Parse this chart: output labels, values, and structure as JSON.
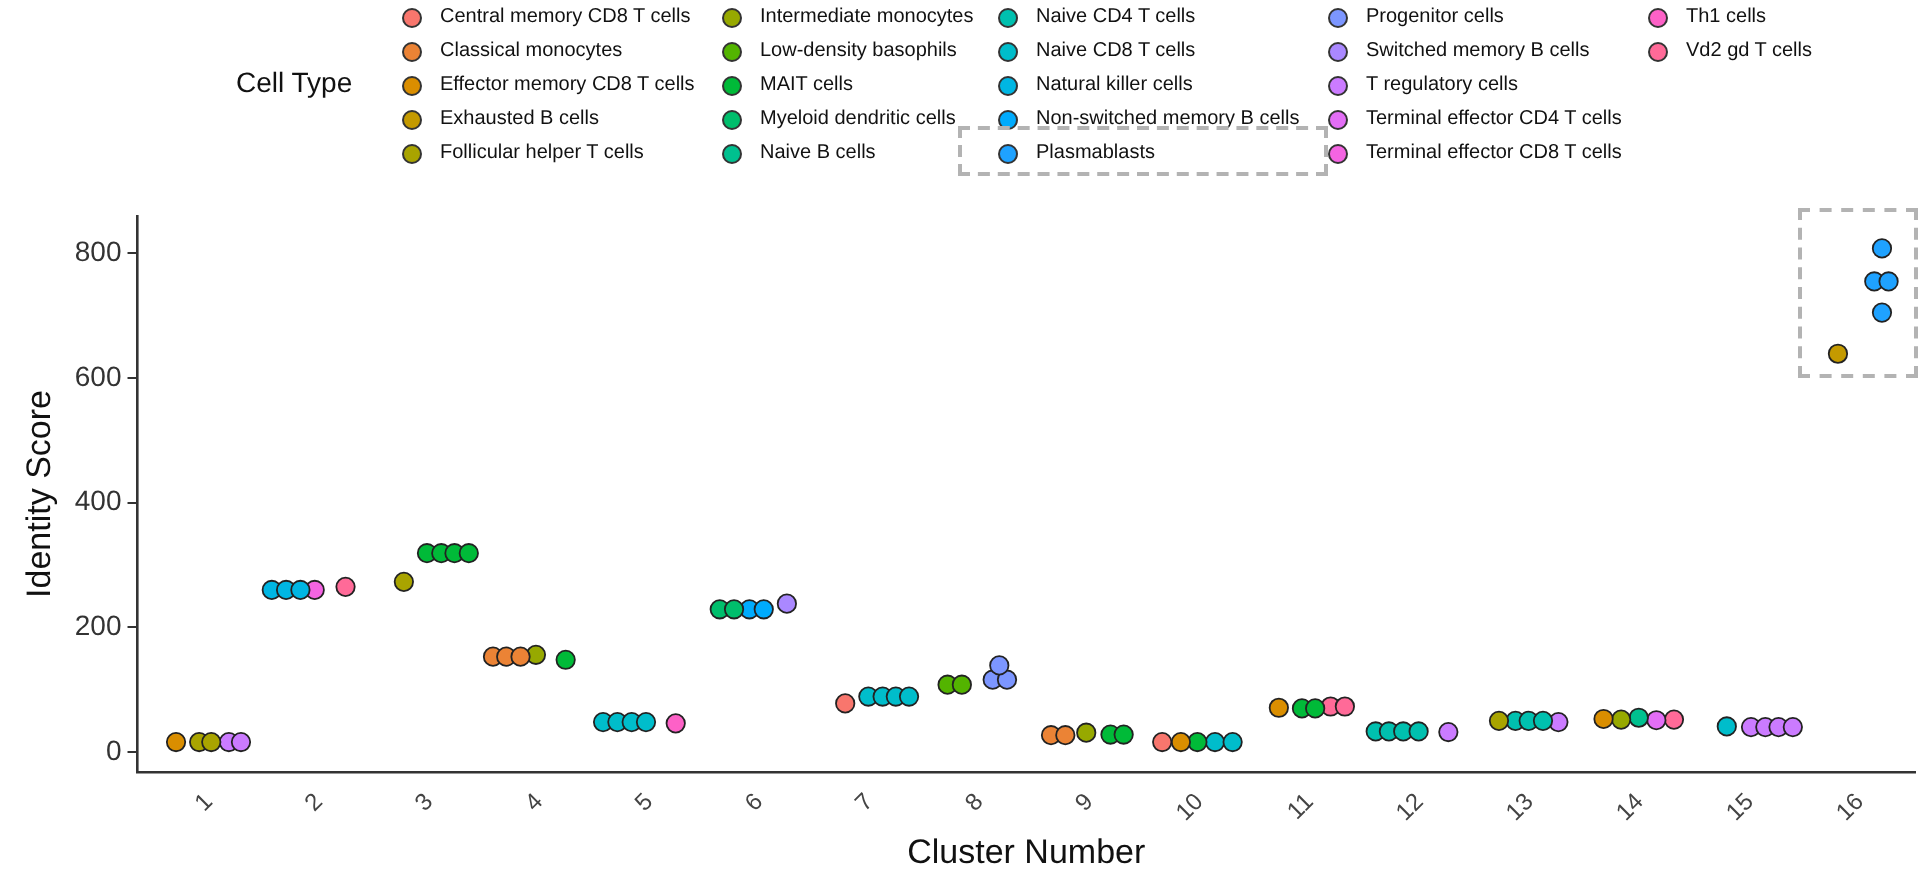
{
  "chart_data": {
    "type": "scatter",
    "xlabel": "Cluster Number",
    "ylabel": "Identity Score",
    "legend_title": "Cell Type",
    "legend": "top",
    "grid": false,
    "marker": "circle",
    "xlim": [
      0.35,
      16.5
    ],
    "xticks": [
      1,
      2,
      3,
      4,
      5,
      6,
      7,
      8,
      9,
      10,
      11,
      12,
      13,
      14,
      15,
      16
    ],
    "ylim": [
      -32,
      860
    ],
    "yticks": [
      0,
      200,
      400,
      600,
      800
    ],
    "series": [
      {
        "name": "Central memory CD8 T cells",
        "color": "#f8766d",
        "x": [
          6.78,
          9.66
        ],
        "values": [
          78,
          16
        ]
      },
      {
        "name": "Classical monocytes",
        "color": "#eb8335",
        "x": [
          3.58,
          3.7,
          3.83,
          8.65,
          8.78
        ],
        "values": [
          153,
          153,
          153,
          27,
          27
        ]
      },
      {
        "name": "Effector memory CD8 T cells",
        "color": "#da8e00",
        "x": [
          0.7,
          9.83,
          10.72,
          13.67
        ],
        "values": [
          16,
          16,
          71,
          53
        ]
      },
      {
        "name": "Exhausted B cells",
        "color": "#c49a00",
        "x": [
          15.8
        ],
        "values": [
          639
        ]
      },
      {
        "name": "Follicular helper T cells",
        "color": "#a9a400",
        "x": [
          0.91,
          1.02,
          2.77,
          12.72
        ],
        "values": [
          16,
          16,
          273,
          50
        ]
      },
      {
        "name": "Intermediate monocytes",
        "color": "#97a900",
        "x": [
          3.97,
          8.97,
          13.83
        ],
        "values": [
          156,
          31,
          52
        ]
      },
      {
        "name": "Low-density basophils",
        "color": "#53b400",
        "x": [
          7.71,
          7.84
        ],
        "values": [
          108,
          108
        ]
      },
      {
        "name": "MAIT cells",
        "color": "#00ba38",
        "x": [
          2.98,
          3.11,
          3.23,
          3.36,
          4.24,
          9.19,
          9.31,
          9.98,
          10.93,
          11.05
        ],
        "values": [
          319,
          319,
          319,
          319,
          148,
          28,
          28,
          16,
          70,
          70
        ]
      },
      {
        "name": "Myeloid dendritic cells",
        "color": "#00be6c",
        "x": [
          5.64,
          5.77
        ],
        "values": [
          229,
          229
        ]
      },
      {
        "name": "Naive B cells",
        "color": "#00c08f",
        "x": [
          13.99
        ],
        "values": [
          55
        ]
      },
      {
        "name": "Naive CD4 T cells",
        "color": "#00c0af",
        "x": [
          11.6,
          11.72,
          11.85,
          11.99,
          12.87,
          12.99,
          13.12
        ],
        "values": [
          33,
          33,
          33,
          33,
          50,
          50,
          50
        ]
      },
      {
        "name": "Naive CD8 T cells",
        "color": "#00bdcb",
        "x": [
          4.58,
          4.71,
          4.84,
          4.97,
          6.99,
          7.12,
          7.24,
          7.36,
          10.14,
          10.3,
          14.79
        ],
        "values": [
          48,
          48,
          48,
          48,
          89,
          89,
          89,
          89,
          16,
          16,
          41
        ]
      },
      {
        "name": "Natural killer cells",
        "color": "#00b6e3",
        "x": [
          1.57,
          1.7,
          1.83
        ],
        "values": [
          260,
          260,
          260
        ]
      },
      {
        "name": "Non-switched memory B cells",
        "color": "#00abfd",
        "x": [
          5.91,
          6.04
        ],
        "values": [
          229,
          229
        ]
      },
      {
        "name": "Plasmablasts",
        "color": "#1fa2ff",
        "x": [
          16.2,
          16.13,
          16.26,
          16.2
        ],
        "values": [
          808,
          755,
          755,
          705
        ]
      },
      {
        "name": "Progenitor cells",
        "color": "#7c96ff",
        "x": [
          8.12,
          8.25,
          8.18
        ],
        "values": [
          116,
          116,
          139
        ]
      },
      {
        "name": "Switched memory B cells",
        "color": "#aa88ff",
        "x": [
          6.25
        ],
        "values": [
          238
        ]
      },
      {
        "name": "T regulatory cells",
        "color": "#cb7bff",
        "x": [
          1.18,
          1.29,
          12.26,
          13.26,
          15.01,
          15.14,
          15.26,
          15.39
        ],
        "values": [
          16,
          16,
          32,
          48,
          40,
          40,
          40,
          40
        ]
      },
      {
        "name": "Terminal effector CD4 T cells",
        "color": "#e36ef6",
        "x": [
          14.15
        ],
        "values": [
          51
        ]
      },
      {
        "name": "Terminal effector CD8 T cells",
        "color": "#f464e2",
        "x": [
          1.96
        ],
        "values": [
          260
        ]
      },
      {
        "name": "Th1 cells",
        "color": "#fd61c7",
        "x": [
          5.24
        ],
        "values": [
          46
        ]
      },
      {
        "name": "Vd2 gd T cells",
        "color": "#ff6a98",
        "x": [
          2.24,
          11.19,
          11.32,
          14.31
        ],
        "values": [
          265,
          73,
          73,
          52
        ]
      }
    ]
  }
}
